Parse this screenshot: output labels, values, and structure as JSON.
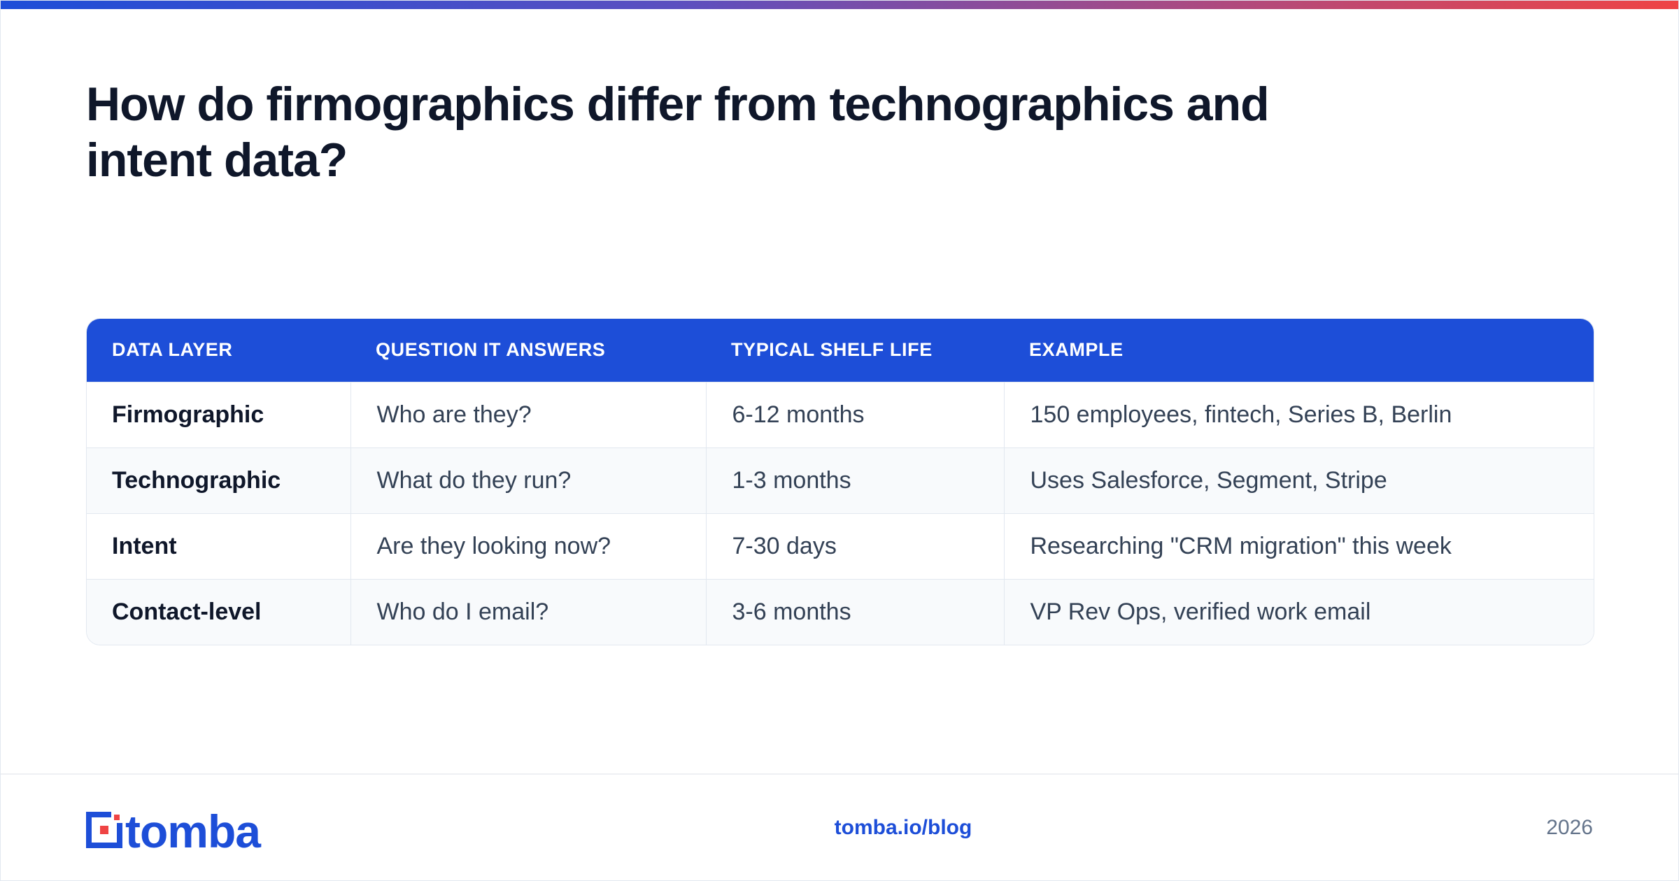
{
  "title": "How do firmographics differ from technographics and intent data?",
  "table": {
    "headers": [
      "DATA LAYER",
      "QUESTION IT ANSWERS",
      "TYPICAL SHELF LIFE",
      "EXAMPLE"
    ],
    "rows": [
      [
        "Firmographic",
        "Who are they?",
        "6-12 months",
        "150 employees, fintech, Series B, Berlin"
      ],
      [
        "Technographic",
        "What do they run?",
        "1-3 months",
        "Uses Salesforce, Segment, Stripe"
      ],
      [
        "Intent",
        "Are they looking now?",
        "7-30 days",
        "Researching \"CRM migration\" this week"
      ],
      [
        "Contact-level",
        "Who do I email?",
        "3-6 months",
        "VP Rev Ops, verified work email"
      ]
    ]
  },
  "footer": {
    "logo_text": "tomba",
    "link": "tomba.io/blog",
    "year": "2026"
  },
  "colors": {
    "accent": "#1d4ed8",
    "logo_red": "#ef4444",
    "title": "#0f172a",
    "muted": "#64748b"
  },
  "icons": {
    "logo_mark": "tomba-logo-icon"
  }
}
